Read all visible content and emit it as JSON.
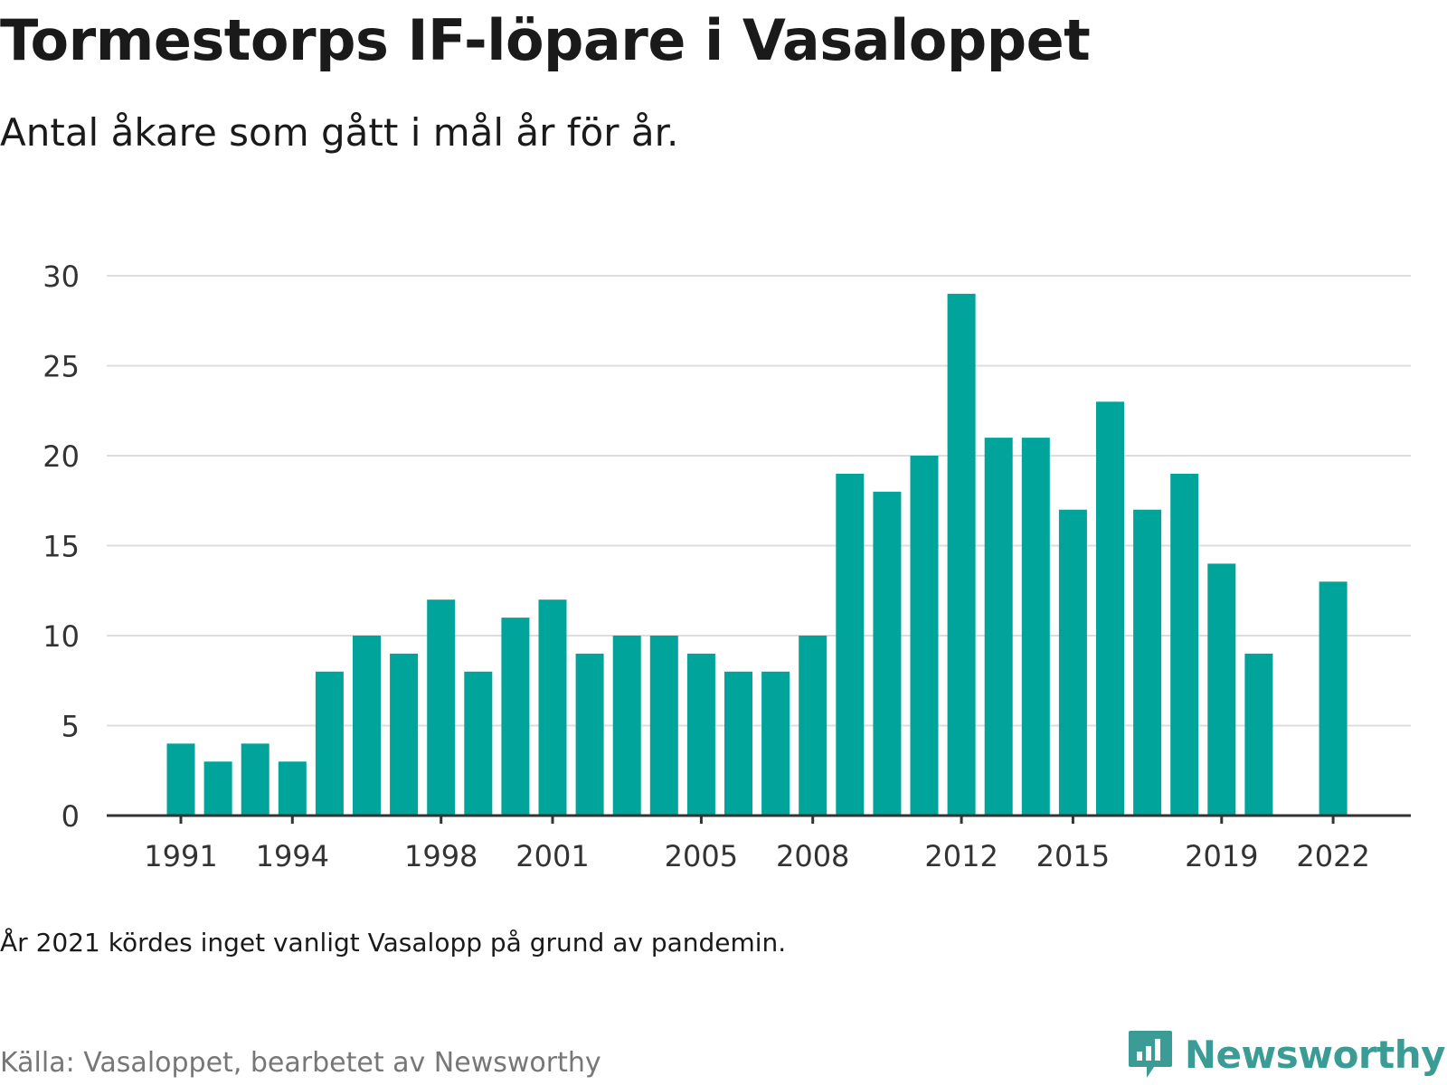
{
  "header": {
    "title": "Tormestorps IF-löpare i Vasaloppet",
    "subtitle": "Antal åkare som gått i mål år för år."
  },
  "footer": {
    "note": "År 2021 kördes inget vanligt Vasalopp på grund av pandemin.",
    "source": "Källa: Vasaloppet, bearbetet av Newsworthy",
    "brand": "Newsworthy",
    "brand_icon": "chart-speech-bubble-icon"
  },
  "colors": {
    "bar": "#00a49a",
    "grid": "#dddddd",
    "axis": "#333333",
    "brand": "#3a9c94"
  },
  "chart_data": {
    "type": "bar",
    "categories": [
      1991,
      1992,
      1993,
      1994,
      1995,
      1996,
      1997,
      1998,
      1999,
      2000,
      2001,
      2002,
      2003,
      2004,
      2005,
      2006,
      2007,
      2008,
      2009,
      2010,
      2011,
      2012,
      2013,
      2014,
      2015,
      2016,
      2017,
      2018,
      2019,
      2020,
      2021,
      2022
    ],
    "values": [
      4,
      3,
      4,
      3,
      8,
      10,
      9,
      12,
      8,
      11,
      12,
      9,
      10,
      10,
      9,
      8,
      8,
      10,
      19,
      18,
      20,
      29,
      21,
      21,
      17,
      23,
      17,
      19,
      14,
      9,
      null,
      13
    ],
    "xticks": [
      1991,
      1994,
      1998,
      2001,
      2005,
      2008,
      2012,
      2015,
      2019,
      2022
    ],
    "yticks": [
      0,
      5,
      10,
      15,
      20,
      25,
      30
    ],
    "ylim": [
      0,
      30
    ],
    "grid": true,
    "xlabel": "",
    "ylabel": ""
  }
}
